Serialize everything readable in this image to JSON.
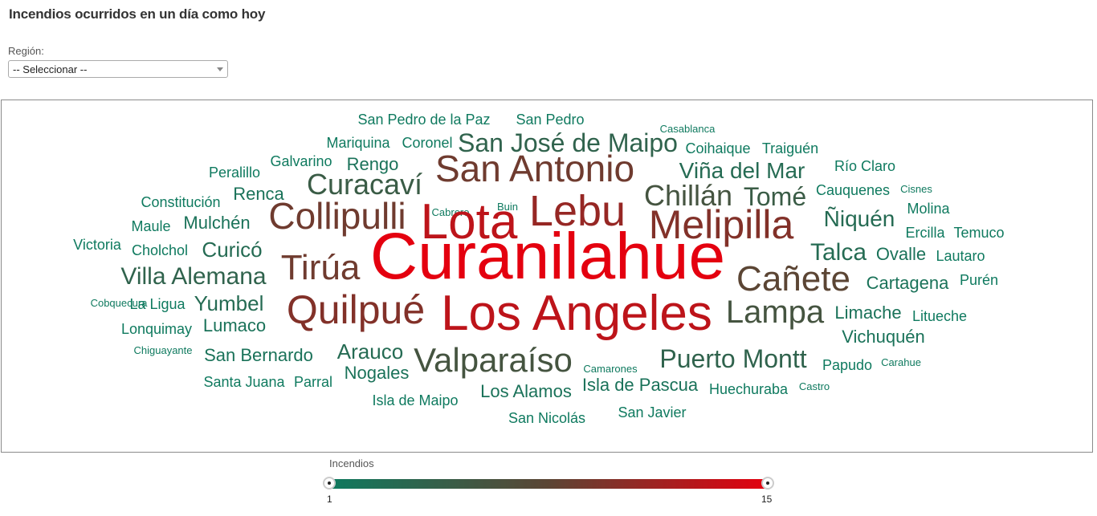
{
  "title": "Incendios ocurridos en un día como hoy",
  "filter": {
    "label": "Región:",
    "value": "-- Seleccionar --"
  },
  "legend": {
    "title": "Incendios",
    "min": "1",
    "max": "15"
  },
  "colors": {
    "low": "#0f7a5f",
    "mid": "#5b4534",
    "high": "#e4000f"
  },
  "chart_data": {
    "type": "wordcloud",
    "color_scale": {
      "min": 1,
      "max": 15
    },
    "words": [
      {
        "text": "Curanilahue",
        "value": 15
      },
      {
        "text": "Los Angeles",
        "value": 13
      },
      {
        "text": "Lota",
        "value": 13
      },
      {
        "text": "Lebu",
        "value": 11
      },
      {
        "text": "Melipilla",
        "value": 10
      },
      {
        "text": "Quilpué",
        "value": 10
      },
      {
        "text": "San Antonio",
        "value": 9
      },
      {
        "text": "Collipulli",
        "value": 9
      },
      {
        "text": "Tirúa",
        "value": 9
      },
      {
        "text": "Cañete",
        "value": 8
      },
      {
        "text": "Valparaíso",
        "value": 6
      },
      {
        "text": "Lampa",
        "value": 6
      },
      {
        "text": "Chillán",
        "value": 6
      },
      {
        "text": "Tomé",
        "value": 5
      },
      {
        "text": "Curacaví",
        "value": 5
      },
      {
        "text": "San José de Maipo",
        "value": 4
      },
      {
        "text": "Puerto Montt",
        "value": 4
      },
      {
        "text": "Villa Alemana",
        "value": 4
      },
      {
        "text": "Viña del Mar",
        "value": 3
      },
      {
        "text": "Talca",
        "value": 3
      },
      {
        "text": "Ñiquén",
        "value": 3
      },
      {
        "text": "Curicó",
        "value": 3
      },
      {
        "text": "Yumbel",
        "value": 3
      },
      {
        "text": "Arauco",
        "value": 3
      },
      {
        "text": "Renca",
        "value": 2
      },
      {
        "text": "Mulchén",
        "value": 2
      },
      {
        "text": "Rengo",
        "value": 2
      },
      {
        "text": "Ovalle",
        "value": 2
      },
      {
        "text": "Cartagena",
        "value": 2
      },
      {
        "text": "Limache",
        "value": 2
      },
      {
        "text": "Vichuquén",
        "value": 2
      },
      {
        "text": "Lumaco",
        "value": 2
      },
      {
        "text": "Nogales",
        "value": 2
      },
      {
        "text": "Los Alamos",
        "value": 2
      },
      {
        "text": "Isla de Pascua",
        "value": 2
      },
      {
        "text": "San Bernardo",
        "value": 2
      },
      {
        "text": "San Pedro de la Paz",
        "value": 1
      },
      {
        "text": "San Pedro",
        "value": 1
      },
      {
        "text": "Casablanca",
        "value": 1
      },
      {
        "text": "Mariquina",
        "value": 1
      },
      {
        "text": "Coronel",
        "value": 1
      },
      {
        "text": "Coihaique",
        "value": 1
      },
      {
        "text": "Traiguén",
        "value": 1
      },
      {
        "text": "Galvarino",
        "value": 1
      },
      {
        "text": "Peralillo",
        "value": 1
      },
      {
        "text": "Río Claro",
        "value": 1
      },
      {
        "text": "Constitución",
        "value": 1
      },
      {
        "text": "Cauquenes",
        "value": 1
      },
      {
        "text": "Cisnes",
        "value": 1
      },
      {
        "text": "Cabrero",
        "value": 1
      },
      {
        "text": "Buin",
        "value": 1
      },
      {
        "text": "Molina",
        "value": 1
      },
      {
        "text": "Maule",
        "value": 1
      },
      {
        "text": "Ercilla",
        "value": 1
      },
      {
        "text": "Temuco",
        "value": 1
      },
      {
        "text": "Victoria",
        "value": 1
      },
      {
        "text": "Cholchol",
        "value": 1
      },
      {
        "text": "Lautaro",
        "value": 1
      },
      {
        "text": "Purén",
        "value": 1
      },
      {
        "text": "Cobquecura",
        "value": 1
      },
      {
        "text": "La Ligua",
        "value": 1
      },
      {
        "text": "Lonquimay",
        "value": 1
      },
      {
        "text": "Litueche",
        "value": 1
      },
      {
        "text": "Chiguayante",
        "value": 1
      },
      {
        "text": "Camarones",
        "value": 1
      },
      {
        "text": "Papudo",
        "value": 1
      },
      {
        "text": "Carahue",
        "value": 1
      },
      {
        "text": "Santa Juana",
        "value": 1
      },
      {
        "text": "Parral",
        "value": 1
      },
      {
        "text": "Huechuraba",
        "value": 1
      },
      {
        "text": "Castro",
        "value": 1
      },
      {
        "text": "Isla de Maipo",
        "value": 1
      },
      {
        "text": "San Nicolás",
        "value": 1
      },
      {
        "text": "San Javier",
        "value": 1
      }
    ]
  }
}
